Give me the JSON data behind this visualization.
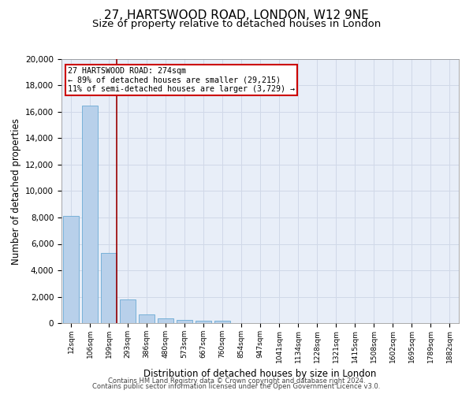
{
  "title_line1": "27, HARTSWOOD ROAD, LONDON, W12 9NE",
  "title_line2": "Size of property relative to detached houses in London",
  "xlabel": "Distribution of detached houses by size in London",
  "ylabel": "Number of detached properties",
  "categories": [
    "12sqm",
    "106sqm",
    "199sqm",
    "293sqm",
    "386sqm",
    "480sqm",
    "573sqm",
    "667sqm",
    "760sqm",
    "854sqm",
    "947sqm",
    "1041sqm",
    "1134sqm",
    "1228sqm",
    "1321sqm",
    "1415sqm",
    "1508sqm",
    "1602sqm",
    "1695sqm",
    "1789sqm",
    "1882sqm"
  ],
  "values": [
    8100,
    16500,
    5300,
    1800,
    650,
    330,
    260,
    200,
    160,
    0,
    0,
    0,
    0,
    0,
    0,
    0,
    0,
    0,
    0,
    0,
    0
  ],
  "bar_color": "#b8d0ea",
  "bar_edge_color": "#6aaad4",
  "vline_x": 2.43,
  "vline_color": "#990000",
  "annotation_text": "27 HARTSWOOD ROAD: 274sqm\n← 89% of detached houses are smaller (29,215)\n11% of semi-detached houses are larger (3,729) →",
  "annotation_box_color": "#cc0000",
  "ylim": [
    0,
    20000
  ],
  "yticks": [
    0,
    2000,
    4000,
    6000,
    8000,
    10000,
    12000,
    14000,
    16000,
    18000,
    20000
  ],
  "grid_color": "#d0d8e8",
  "bg_color": "#e8eef8",
  "footer_line1": "Contains HM Land Registry data © Crown copyright and database right 2024.",
  "footer_line2": "Contains public sector information licensed under the Open Government Licence v3.0.",
  "title_fontsize": 11,
  "subtitle_fontsize": 9.5,
  "tick_fontsize": 6.5,
  "ylabel_fontsize": 8.5,
  "xlabel_fontsize": 8.5,
  "footer_fontsize": 6.0
}
